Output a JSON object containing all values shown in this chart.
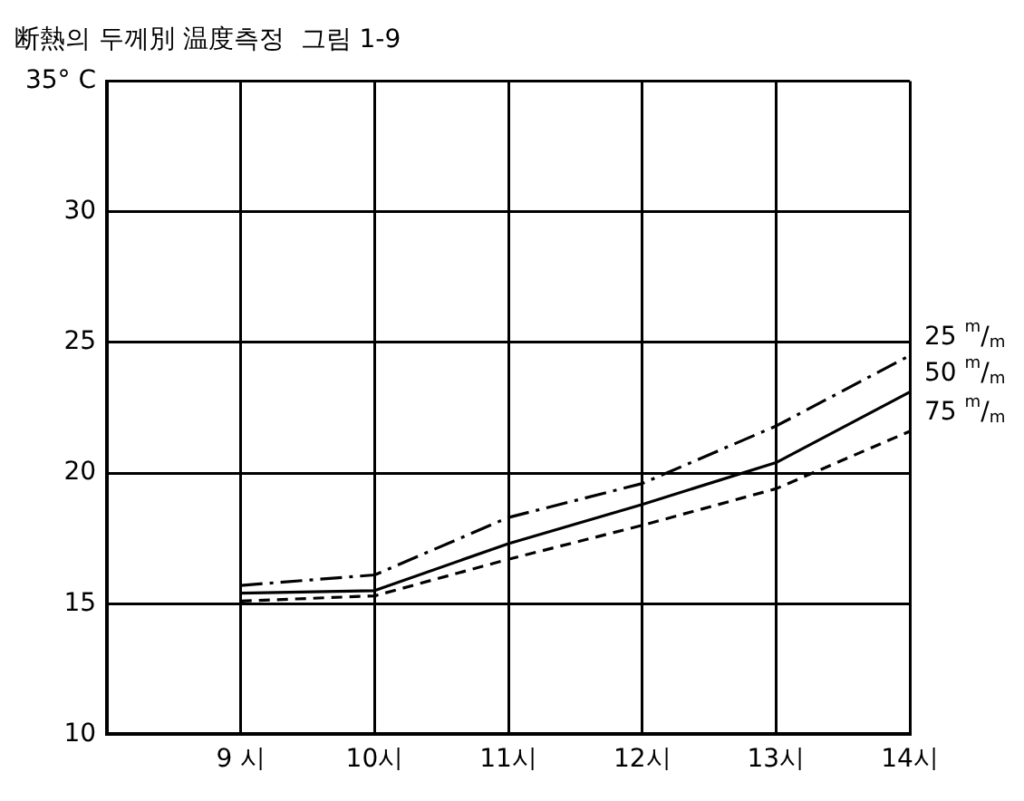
{
  "chart_data": {
    "type": "line",
    "title": "断熱의 두께別 温度측정  그림 1-9",
    "categories": [
      null,
      "9 시",
      "10시",
      "11시",
      "12시",
      "13시",
      "14시"
    ],
    "series": [
      {
        "name": "25 $^{m}$/$_{m}$",
        "color": "#000000",
        "line_style": "dashed",
        "values": [
          null,
          15.7,
          16.1,
          18.3,
          19.6,
          21.8,
          24.5
        ]
      },
      {
        "name": "50 $^{m}$/$_{m}$",
        "color": "#000000",
        "line_style": "solid",
        "values": [
          null,
          15.4,
          15.5,
          17.3,
          18.8,
          20.4,
          23.1
        ]
      },
      {
        "name": "75 $^{m}$/$_{m}$",
        "color": "#000000",
        "line_style": "dotted",
        "values": [
          null,
          15.1,
          15.3,
          16.7,
          18.0,
          19.4,
          21.6
        ]
      }
    ],
    "ylim": [
      10,
      35
    ],
    "yticks": [
      10,
      15,
      20,
      25,
      30,
      {
        "value": 35,
        "label": "35° C"
      }
    ],
    "grid": true,
    "legend": false,
    "marker": "none"
  }
}
